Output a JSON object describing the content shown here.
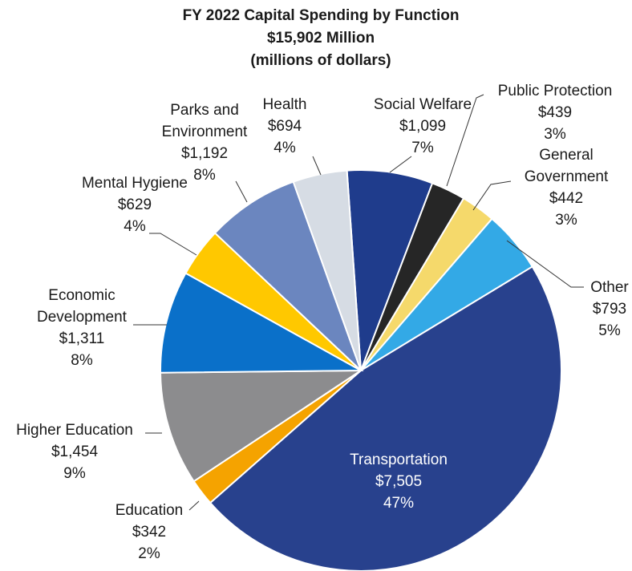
{
  "chart_data": {
    "type": "pie",
    "title": "FY 2022 Capital Spending by Function",
    "subtitle": [
      "$15,902 Million",
      "(millions of dollars)"
    ],
    "categories": [
      "Social Welfare",
      "Public Protection",
      "General Government",
      "Other",
      "Transportation",
      "Education",
      "Higher Education",
      "Economic Development",
      "Mental Hygiene",
      "Parks and Environment",
      "Health"
    ],
    "values": [
      1099,
      439,
      442,
      793,
      7505,
      342,
      1454,
      1311,
      629,
      1192,
      694
    ],
    "value_labels": [
      "$1,099",
      "$439",
      "$442",
      "$793",
      "$7,505",
      "$342",
      "$1,454",
      "$1,311",
      "$629",
      "$1,192",
      "$694"
    ],
    "percent_labels": [
      "7%",
      "3%",
      "3%",
      "5%",
      "47%",
      "2%",
      "9%",
      "8%",
      "4%",
      "8%",
      "4%"
    ],
    "colors": [
      "#1f3c8c",
      "#262626",
      "#f5d96b",
      "#33a9e6",
      "#28418d",
      "#f5a300",
      "#8c8c8e",
      "#0a70c9",
      "#ffc800",
      "#6b86bf",
      "#d6dce4"
    ]
  }
}
